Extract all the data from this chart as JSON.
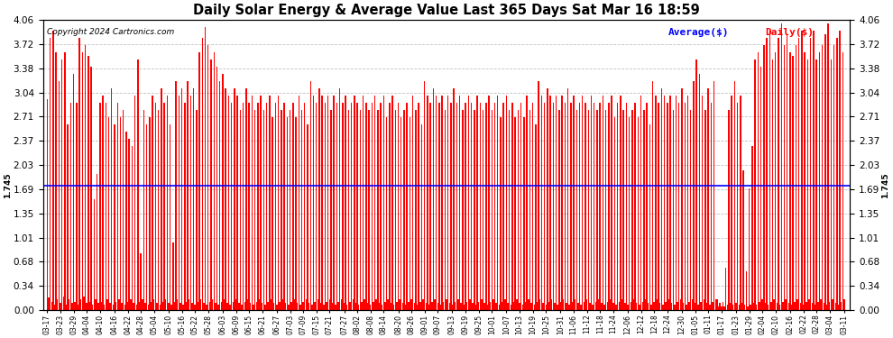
{
  "title": "Daily Solar Energy & Average Value Last 365 Days Sat Mar 16 18:59",
  "copyright": "Copyright 2024 Cartronics.com",
  "legend_avg": "Average($)",
  "legend_daily": "Daily($)",
  "average_value": 1.745,
  "average_label": "1.745",
  "ylim": [
    0.0,
    4.06
  ],
  "yticks": [
    0.0,
    0.34,
    0.68,
    1.01,
    1.35,
    1.69,
    2.03,
    2.37,
    2.71,
    3.04,
    3.38,
    3.72,
    4.06
  ],
  "bar_color": "#ff0000",
  "avg_line_color": "#0000ff",
  "background_color": "#ffffff",
  "grid_color": "#bbbbbb",
  "title_color": "#000000",
  "values": [
    2.95,
    0.18,
    3.8,
    0.12,
    3.9,
    0.08,
    3.6,
    0.15,
    3.2,
    0.1,
    3.5,
    0.2,
    3.6,
    0.08,
    2.6,
    0.15,
    2.9,
    0.1,
    3.3,
    0.12,
    2.9,
    0.08,
    3.8,
    0.15,
    3.6,
    0.2,
    3.7,
    0.1,
    3.55,
    0.12,
    3.4,
    0.08,
    1.55,
    0.15,
    1.9,
    0.1,
    2.9,
    0.12,
    3.0,
    0.08,
    2.9,
    0.15,
    2.7,
    0.1,
    3.1,
    0.08,
    2.6,
    0.12,
    2.9,
    0.15,
    2.7,
    0.1,
    2.8,
    0.08,
    2.5,
    0.12,
    2.4,
    0.15,
    2.3,
    0.1,
    3.0,
    0.08,
    3.5,
    0.12,
    0.8,
    0.15,
    2.8,
    0.1,
    2.6,
    0.08,
    2.7,
    0.12,
    3.0,
    0.15,
    2.9,
    0.1,
    2.8,
    0.08,
    3.1,
    0.12,
    2.9,
    0.15,
    3.0,
    0.1,
    2.6,
    0.08,
    0.95,
    0.12,
    3.2,
    0.15,
    3.0,
    0.1,
    3.1,
    0.08,
    2.9,
    0.12,
    3.2,
    0.15,
    3.0,
    0.1,
    3.1,
    0.08,
    2.8,
    0.12,
    3.6,
    0.15,
    3.8,
    0.1,
    3.95,
    0.08,
    3.7,
    0.12,
    3.5,
    0.15,
    3.6,
    0.1,
    3.4,
    0.08,
    3.2,
    0.12,
    3.3,
    0.15,
    3.1,
    0.1,
    3.0,
    0.08,
    2.9,
    0.12,
    3.1,
    0.15,
    3.0,
    0.1,
    2.8,
    0.08,
    2.9,
    0.12,
    3.1,
    0.15,
    2.9,
    0.1,
    3.0,
    0.08,
    2.8,
    0.12,
    2.9,
    0.15,
    3.0,
    0.1,
    2.8,
    0.08,
    2.9,
    0.12,
    3.0,
    0.15,
    2.7,
    0.1,
    2.9,
    0.08,
    3.0,
    0.12,
    2.8,
    0.15,
    2.9,
    0.1,
    2.7,
    0.08,
    2.8,
    0.12,
    2.9,
    0.15,
    2.7,
    0.1,
    3.0,
    0.08,
    2.8,
    0.12,
    2.9,
    0.15,
    2.6,
    0.1,
    3.2,
    0.08,
    3.0,
    0.12,
    2.9,
    0.15,
    3.1,
    0.1,
    3.0,
    0.08,
    2.9,
    0.12,
    3.0,
    0.15,
    2.8,
    0.1,
    3.0,
    0.08,
    2.9,
    0.12,
    3.1,
    0.15,
    2.9,
    0.1,
    3.0,
    0.08,
    2.8,
    0.12,
    2.9,
    0.15,
    3.0,
    0.1,
    2.9,
    0.08,
    2.8,
    0.12,
    3.0,
    0.15,
    2.9,
    0.1,
    2.8,
    0.08,
    2.9,
    0.12,
    3.0,
    0.15,
    2.8,
    0.1,
    2.9,
    0.08,
    3.0,
    0.12,
    2.7,
    0.15,
    2.9,
    0.1,
    3.0,
    0.08,
    2.8,
    0.12,
    2.9,
    0.15,
    2.7,
    0.1,
    2.8,
    0.08,
    2.9,
    0.12,
    2.7,
    0.15,
    3.0,
    0.1,
    2.8,
    0.08,
    2.9,
    0.12,
    2.6,
    0.15,
    3.2,
    0.1,
    3.0,
    0.08,
    2.9,
    0.12,
    3.1,
    0.15,
    3.0,
    0.1,
    2.9,
    0.08,
    3.0,
    0.12,
    2.8,
    0.15,
    3.0,
    0.1,
    2.9,
    0.08,
    3.1,
    0.12,
    2.9,
    0.15,
    3.0,
    0.1,
    2.8,
    0.08,
    2.9,
    0.12,
    3.0,
    0.15,
    2.9,
    0.1,
    2.8,
    0.08,
    3.0,
    0.12,
    2.9,
    0.15,
    2.8,
    0.1,
    2.9,
    0.08,
    3.0,
    0.12,
    2.8,
    0.15,
    2.9,
    0.1,
    3.0,
    0.08,
    2.7,
    0.12,
    2.9,
    0.15,
    3.0,
    0.1,
    2.8,
    0.08,
    2.9,
    0.12,
    2.7,
    0.15,
    2.8,
    0.1,
    2.9,
    0.08,
    2.7,
    0.12,
    3.0,
    0.15,
    2.8,
    0.1,
    2.9,
    0.08,
    2.6,
    0.12,
    3.2,
    0.15,
    3.0,
    0.1,
    2.9,
    0.08,
    3.1,
    0.12,
    3.0,
    0.15,
    2.9,
    0.1,
    3.0,
    0.08,
    2.8,
    0.12,
    3.0,
    0.15,
    2.9,
    0.1,
    3.1,
    0.08,
    2.9,
    0.12,
    3.0,
    0.15,
    2.8,
    0.1,
    2.9,
    0.08,
    3.0,
    0.12,
    2.9,
    0.15,
    2.8,
    0.1,
    3.0,
    0.08,
    2.9,
    0.12,
    2.8,
    0.15,
    2.9,
    0.1,
    3.0,
    0.08,
    2.8,
    0.12,
    2.9,
    0.15,
    3.0,
    0.1,
    2.7,
    0.08,
    2.9,
    0.12,
    3.0,
    0.15,
    2.8,
    0.1,
    2.9,
    0.08,
    2.7,
    0.12,
    2.8,
    0.15,
    2.9,
    0.1,
    2.7,
    0.08,
    3.0,
    0.12,
    2.8,
    0.15,
    2.9,
    0.1,
    2.6,
    0.08,
    3.2,
    0.12,
    3.0,
    0.15,
    2.9,
    0.1,
    3.1,
    0.08,
    3.0,
    0.12,
    2.9,
    0.15,
    3.0,
    0.1,
    2.8,
    0.08,
    3.0,
    0.12,
    2.9,
    0.15,
    3.1,
    0.1,
    2.9,
    0.08,
    3.0,
    0.12,
    2.8,
    0.15,
    3.2,
    0.1,
    3.5,
    0.08,
    3.3,
    0.12,
    3.0,
    0.15,
    2.8,
    0.1,
    3.1,
    0.08,
    2.9,
    0.12,
    3.2,
    0.15,
    0.15,
    0.05,
    0.1,
    0.05,
    0.12,
    0.05,
    0.6,
    0.08,
    2.8,
    0.1,
    3.0,
    0.08,
    3.2,
    0.1,
    2.9,
    0.08,
    3.0,
    0.1,
    1.95,
    0.08,
    0.55,
    0.05,
    1.7,
    0.08,
    2.3,
    0.1,
    3.5,
    0.08,
    3.6,
    0.12,
    3.4,
    0.15,
    3.7,
    0.1,
    3.8,
    0.08,
    3.9,
    0.12,
    3.5,
    0.15,
    3.6,
    0.1,
    3.8,
    0.08,
    4.0,
    0.12,
    3.7,
    0.15,
    3.85,
    0.1,
    3.6,
    0.08,
    3.55,
    0.12,
    3.7,
    0.15,
    3.8,
    0.1,
    3.9,
    0.08,
    3.6,
    0.12,
    3.5,
    0.15,
    3.8,
    0.1,
    3.9,
    0.08,
    3.5,
    0.12,
    3.6,
    0.15,
    3.7,
    0.1,
    3.85,
    0.08,
    4.0,
    0.12,
    3.5,
    0.15,
    3.7,
    0.1,
    3.8,
    0.08,
    3.9,
    0.12,
    3.6,
    0.15
  ],
  "tick_dates": [
    "03-17",
    "03-23",
    "03-29",
    "04-04",
    "04-10",
    "04-16",
    "04-22",
    "04-28",
    "05-04",
    "05-10",
    "05-16",
    "05-22",
    "05-28",
    "06-03",
    "06-09",
    "06-15",
    "06-21",
    "06-27",
    "07-03",
    "07-09",
    "07-15",
    "07-21",
    "07-27",
    "08-02",
    "08-08",
    "08-14",
    "08-20",
    "08-26",
    "09-01",
    "09-07",
    "09-13",
    "09-19",
    "09-25",
    "10-01",
    "10-07",
    "10-13",
    "10-19",
    "10-25",
    "10-31",
    "11-06",
    "11-12",
    "11-18",
    "11-24",
    "12-06",
    "12-12",
    "12-18",
    "12-24",
    "12-30",
    "01-05",
    "01-11",
    "01-17",
    "01-23",
    "01-29",
    "02-04",
    "02-10",
    "02-16",
    "02-22",
    "02-28",
    "03-04",
    "03-11"
  ]
}
